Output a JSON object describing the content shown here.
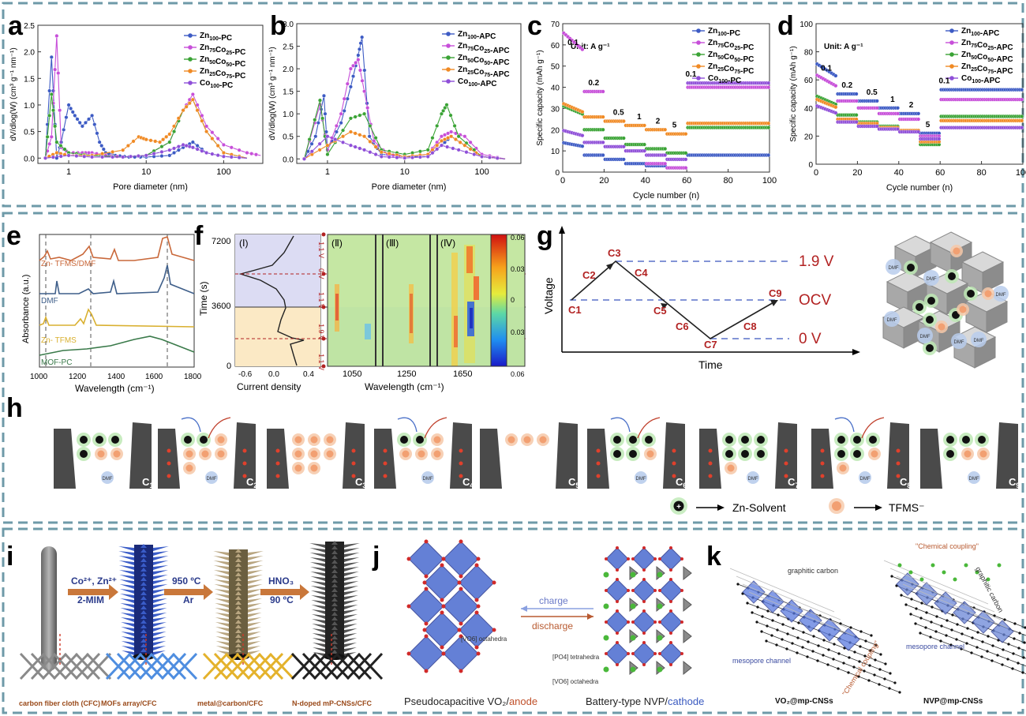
{
  "colors": {
    "dash_border": "#6e9aa8",
    "zn100": "#3d5bc4",
    "zn75": "#c74fd9",
    "zn50": "#3aa335",
    "zn25": "#f08a24",
    "co100": "#8f4fd8",
    "bulk_line": "#222222",
    "red_label": "#b22222"
  },
  "panel_letters": {
    "a": "a",
    "b": "b",
    "c": "c",
    "d": "d",
    "e": "e",
    "f": "f",
    "g": "g",
    "h": "h",
    "i": "i",
    "j": "j",
    "k": "k"
  },
  "chart_data": [
    {
      "id": "a",
      "type": "line",
      "xlabel": "Pore diameter (nm)",
      "ylabel": "dV/dlog(W) (cm³ g⁻¹ nm⁻¹)",
      "x_scale": "log",
      "xlim": [
        0.4,
        320
      ],
      "ylim": [
        -0.1,
        2.5
      ],
      "x_ticks": [
        "1",
        "10",
        "100"
      ],
      "y_ticks": [
        "0.0",
        "0.5",
        "1.0",
        "1.5",
        "2.0",
        "2.5"
      ],
      "legend_position": "top-right",
      "series": [
        {
          "name": "Zn100-PC",
          "color": "#3d5bc4",
          "x": [
            0.5,
            0.6,
            0.7,
            0.8,
            1,
            1.2,
            1.5,
            2,
            2.5,
            3,
            4,
            6,
            10,
            20,
            30,
            40,
            60,
            100,
            200
          ],
          "y": [
            0,
            1.9,
            0,
            0.3,
            1.0,
            0.8,
            0.6,
            0.8,
            0.3,
            0.1,
            0.05,
            0.02,
            0.02,
            0.05,
            0.2,
            0.3,
            0.1,
            0.03,
            0
          ]
        },
        {
          "name": "Zn75Co25-PC",
          "color": "#c74fd9",
          "x": [
            0.5,
            0.6,
            0.7,
            0.8,
            1,
            1.5,
            2,
            3,
            5,
            10,
            20,
            30,
            40,
            60,
            100,
            200,
            300
          ],
          "y": [
            0,
            0.4,
            2.3,
            0.2,
            0.1,
            0.1,
            0.1,
            0.05,
            0.02,
            0.05,
            0.3,
            0.9,
            1.2,
            0.6,
            0.25,
            0.1,
            0.05
          ]
        },
        {
          "name": "Zn50Co50-PC",
          "color": "#3aa335",
          "x": [
            0.5,
            0.6,
            0.7,
            1,
            2,
            5,
            10,
            20,
            30,
            40,
            60,
            100,
            200
          ],
          "y": [
            0,
            1.2,
            0.3,
            0.1,
            0.05,
            0.02,
            0.05,
            0.3,
            0.9,
            1.1,
            0.5,
            0.1,
            0
          ]
        },
        {
          "name": "Zn25Co75-PC",
          "color": "#f08a24",
          "x": [
            0.5,
            0.7,
            1,
            2,
            5,
            8,
            10,
            15,
            20,
            30,
            40,
            60,
            100,
            200
          ],
          "y": [
            0,
            0.1,
            0.05,
            0.05,
            0.15,
            0.4,
            0.35,
            0.3,
            0.45,
            0.9,
            1.1,
            0.5,
            0.1,
            0
          ]
        },
        {
          "name": "Co100-PC",
          "color": "#8f4fd8",
          "x": [
            0.5,
            1,
            2,
            5,
            10,
            20,
            30,
            40,
            60,
            100,
            200
          ],
          "y": [
            0,
            0.05,
            0.02,
            0.02,
            0.05,
            0.15,
            0.25,
            0.2,
            0.1,
            0.03,
            0
          ]
        }
      ]
    },
    {
      "id": "b",
      "type": "line",
      "xlabel": "Pore diameter (nm)",
      "ylabel": "dV/dlog(W) (cm³ g⁻¹ nm⁻¹)",
      "x_scale": "log",
      "xlim": [
        0.4,
        320
      ],
      "ylim": [
        -0.1,
        3.0
      ],
      "x_ticks": [
        "1",
        "10",
        "100"
      ],
      "y_ticks": [
        "0.0",
        "0.5",
        "1.0",
        "1.5",
        "2.0",
        "2.5",
        "3.0"
      ],
      "legend_position": "top-right",
      "series": [
        {
          "name": "Zn100-APC",
          "color": "#3d5bc4",
          "x": [
            0.5,
            0.7,
            0.9,
            1,
            1.5,
            2,
            2.5,
            2.8,
            3.5,
            5,
            10,
            20,
            30,
            40,
            60,
            100,
            200
          ],
          "y": [
            0,
            0.5,
            1.4,
            0.2,
            0.8,
            1.6,
            2.3,
            2.7,
            0.5,
            0.1,
            0.05,
            0.05,
            0.3,
            0.5,
            0.3,
            0.05,
            0
          ]
        },
        {
          "name": "Zn75Co25-APC",
          "color": "#c74fd9",
          "x": [
            0.5,
            0.8,
            1,
            1.5,
            2,
            2.5,
            3,
            4,
            6,
            10,
            20,
            30,
            40,
            60,
            100,
            200
          ],
          "y": [
            0,
            1.2,
            0.2,
            1.0,
            2.0,
            2.2,
            1.5,
            0.4,
            0.1,
            0.05,
            0.1,
            0.5,
            0.6,
            0.5,
            0.1,
            0
          ]
        },
        {
          "name": "Zn50Co50-APC",
          "color": "#3aa335",
          "x": [
            0.5,
            0.8,
            1,
            2,
            3,
            5,
            10,
            20,
            30,
            35,
            50,
            100,
            200
          ],
          "y": [
            0,
            1.3,
            0.1,
            0.9,
            1.0,
            0.2,
            0.1,
            0.2,
            1.0,
            1.2,
            0.5,
            0.05,
            0
          ]
        },
        {
          "name": "Zn25Co75-APC",
          "color": "#f08a24",
          "x": [
            0.5,
            1,
            2,
            3,
            5,
            10,
            20,
            30,
            40,
            60,
            100,
            200
          ],
          "y": [
            0,
            0.3,
            0.6,
            0.5,
            0.15,
            0.05,
            0.1,
            0.4,
            0.5,
            0.3,
            0.05,
            0
          ]
        },
        {
          "name": "Co100-APC",
          "color": "#8f4fd8",
          "x": [
            0.5,
            1,
            2,
            3,
            5,
            10,
            20,
            30,
            50,
            100,
            200
          ],
          "y": [
            0,
            0.5,
            0.3,
            0.2,
            0.05,
            0.02,
            0.05,
            0.3,
            0.2,
            0.05,
            0
          ]
        }
      ]
    },
    {
      "id": "c",
      "type": "scatter",
      "xlabel": "Cycle number (n)",
      "ylabel": "Specific capacity (mAh g⁻¹)",
      "xlim": [
        0,
        100
      ],
      "ylim": [
        0,
        70
      ],
      "x_ticks": [
        "0",
        "20",
        "40",
        "60",
        "80",
        "100"
      ],
      "y_ticks": [
        "0",
        "10",
        "20",
        "30",
        "40",
        "50",
        "60",
        "70"
      ],
      "unit_note": "Unit: A g⁻¹",
      "rate_labels": [
        "0.1",
        "0.2",
        "0.5",
        "1",
        "2",
        "5",
        "0.1"
      ],
      "legend_position": "top-right",
      "segments": [
        0,
        10,
        20,
        30,
        40,
        50,
        60,
        100
      ],
      "series": [
        {
          "name": "Zn100-PC",
          "color": "#3d5bc4",
          "levels": [
            12,
            8,
            6,
            4,
            3,
            2,
            8
          ]
        },
        {
          "name": "Zn75Co25-PC",
          "color": "#c74fd9",
          "levels": [
            57,
            38,
            24,
            10,
            4,
            2,
            40
          ]
        },
        {
          "name": "Zn50Co50-PC",
          "color": "#3aa335",
          "levels": [
            27,
            20,
            16,
            13,
            11,
            9,
            21
          ]
        },
        {
          "name": "Zn25Co75-PC",
          "color": "#f08a24",
          "levels": [
            28,
            26,
            24,
            22,
            20,
            18,
            23
          ]
        },
        {
          "name": "Co100-PC",
          "color": "#8f4fd8",
          "levels": [
            17,
            14,
            12,
            10,
            8,
            6,
            42
          ]
        }
      ]
    },
    {
      "id": "d",
      "type": "scatter",
      "xlabel": "Cycle number (n)",
      "ylabel": "Specific capacity (mAh g⁻¹)",
      "xlim": [
        0,
        100
      ],
      "ylim": [
        0,
        100
      ],
      "x_ticks": [
        "0",
        "20",
        "40",
        "60",
        "80",
        "100"
      ],
      "y_ticks": [
        "0",
        "20",
        "40",
        "60",
        "80",
        "100"
      ],
      "unit_note": "Unit: A g⁻¹",
      "rate_labels": [
        "0.1",
        "0.2",
        "0.5",
        "1",
        "2",
        "5",
        "0.1"
      ],
      "legend_position": "top-right",
      "segments": [
        0,
        10,
        20,
        30,
        40,
        50,
        60,
        100
      ],
      "series": [
        {
          "name": "Zn100-APC",
          "color": "#3d5bc4",
          "levels": [
            62,
            50,
            45,
            40,
            36,
            22,
            53
          ]
        },
        {
          "name": "Zn75Co25-APC",
          "color": "#c74fd9",
          "levels": [
            55,
            45,
            40,
            36,
            32,
            20,
            46
          ]
        },
        {
          "name": "Zn50Co50-APC",
          "color": "#3aa335",
          "levels": [
            42,
            35,
            30,
            27,
            24,
            14,
            34
          ]
        },
        {
          "name": "Zn25Co75-APC",
          "color": "#f08a24",
          "levels": [
            40,
            32,
            29,
            26,
            24,
            16,
            31
          ]
        },
        {
          "name": "Co100-APC",
          "color": "#8f4fd8",
          "levels": [
            36,
            30,
            27,
            25,
            23,
            18,
            26
          ]
        }
      ]
    },
    {
      "id": "e",
      "type": "line",
      "xlabel": "Wavelength (cm⁻¹)",
      "ylabel": "Absorbance (a.u.)",
      "xlim": [
        1000,
        1800
      ],
      "x_ticks": [
        "1000",
        "1200",
        "1400",
        "1600",
        "1800"
      ],
      "series_labels": [
        "Zn- TFMS/DMF",
        "DMF",
        "Zn- TFMS",
        "MOF-PC"
      ],
      "series_colors": [
        "#c9683a",
        "#3f5f8a",
        "#d9b030",
        "#3a7a4a"
      ]
    },
    {
      "id": "f",
      "type": "heatmap",
      "left_xlabel": "Current density",
      "left_ylabel": "Time (s)",
      "left_x_ticks": [
        "-0.6",
        "0.0",
        "0.4"
      ],
      "left_y_ticks": [
        "0",
        "3600",
        "7200"
      ],
      "roman_labels": [
        "(Ⅰ)",
        "(Ⅱ)",
        "(Ⅲ)",
        "(Ⅳ)"
      ],
      "voltage_labels": [
        "1.1 V",
        "0 V",
        "1.1 V",
        "1.9 V",
        "1.1 V"
      ],
      "xlabel": "Wavelength (cm⁻¹)",
      "x_ticks": [
        "1050",
        "1250",
        "1650"
      ],
      "colorbar_ticks": [
        "0.06",
        "0.03",
        "0",
        "0.03",
        "0.06"
      ]
    }
  ],
  "panel_g": {
    "xlabel": "Time",
    "ylabel": "Voltage",
    "levels": [
      "1.9 V",
      "OCV",
      "0 V"
    ],
    "points": [
      "C1",
      "C2",
      "C3",
      "C4",
      "C5",
      "C6",
      "C7",
      "C8",
      "C9"
    ]
  },
  "panel_h": {
    "steps": [
      "C1",
      "C2",
      "C3",
      "C4",
      "C5",
      "C6",
      "C7",
      "C8",
      "C9"
    ],
    "dmf_label": "DMF",
    "legend_zn": "Zn-Solvent",
    "legend_tfms": "TFMS⁻"
  },
  "panel_i": {
    "arrow1_top": "Co²⁺, Zn²⁺",
    "arrow1_bottom": "2-MIM",
    "arrow2_top": "950 ºC",
    "arrow2_bottom": "Ar",
    "arrow3_top": "HNO₃",
    "arrow3_bottom": "90 ºC",
    "captions": [
      "carbon fiber cloth (CFC)",
      "MOFs array/CFC",
      "metal@carbon/CFC",
      "N-doped mP-CNSs/CFC"
    ]
  },
  "panel_j": {
    "charge": "charge",
    "discharge": "discharge",
    "vo6_left": "[VO6] octahedra",
    "po4": "[PO4] tetrahedra",
    "vo6_right": "[VO6] octahedra",
    "left_caption": "Pseudocapacitive VO₂/",
    "left_caption_b": "anode",
    "right_caption": "Battery-type NVP/",
    "right_caption_b": "cathode"
  },
  "panel_k": {
    "graphitic1": "graphitic carbon",
    "mesopore1": "mesopore channel",
    "graphitic2": "graphitic carbon",
    "mesopore2": "mesopore channel",
    "coupling1": "\"Chemical coupling\"",
    "coupling2": "\"Chemical coupling\"",
    "caption1": "VO₂@mp-CNSs",
    "caption2": "NVP@mp-CNSs"
  }
}
